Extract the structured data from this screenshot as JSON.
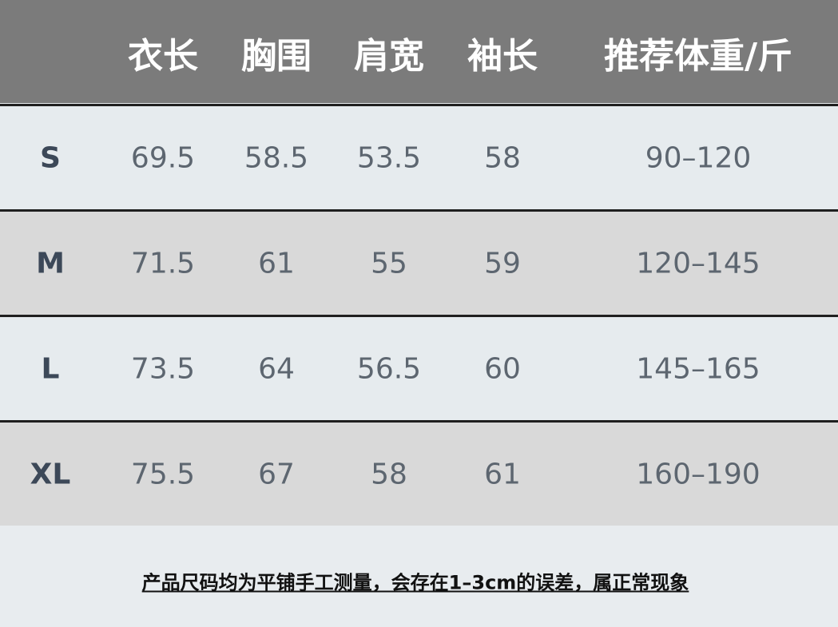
{
  "table": {
    "header": [
      "衣长",
      "胸围",
      "肩宽",
      "袖长",
      "推荐体重/斤"
    ],
    "rows": [
      [
        "S",
        69.5,
        58.5,
        53.5,
        58,
        "90–120"
      ],
      [
        "M",
        71.5,
        61,
        55,
        59,
        "120–145"
      ],
      [
        "L",
        73.5,
        64,
        56.5,
        60,
        "145–165"
      ],
      [
        "XL",
        75.5,
        67,
        58,
        61,
        "160–190"
      ]
    ]
  },
  "footer": {
    "note": "产品尺码均为平铺手工测量，会存在1–3cm的误差，属正常现象"
  }
}
